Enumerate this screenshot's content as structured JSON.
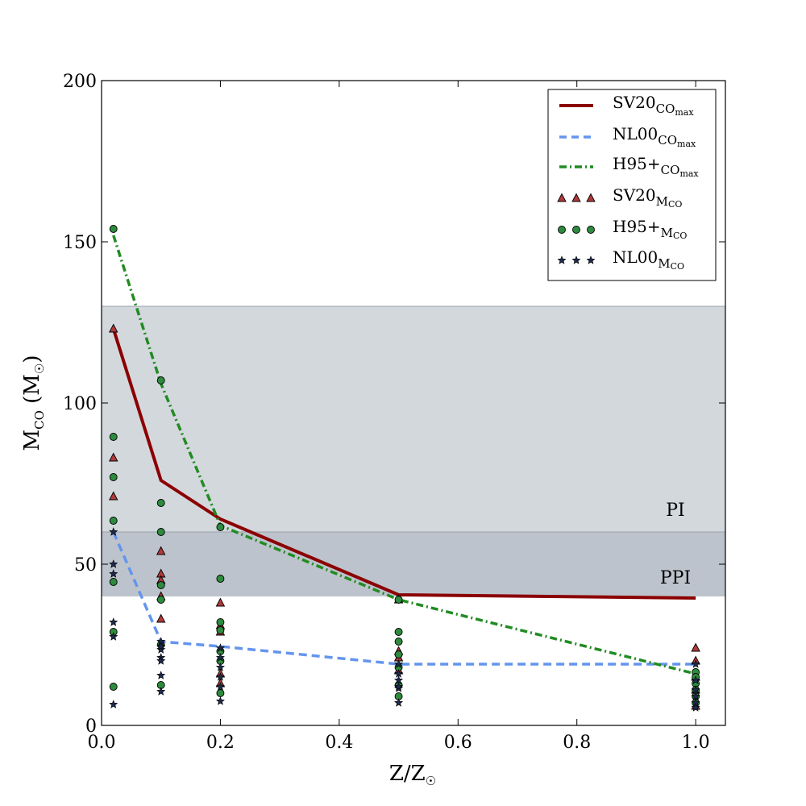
{
  "chart_data": {
    "type": "line",
    "title": "",
    "xlabel": "Z/Z☉",
    "xlabel_main": "Z/Z",
    "xlabel_sub": "☉",
    "ylabel_main": "M",
    "ylabel_sub": "CO",
    "ylabel_unit": " (M",
    "ylabel_unit_sub": "☉",
    "ylabel_close": ")",
    "xlim": [
      0.0,
      1.05
    ],
    "ylim": [
      0,
      200
    ],
    "xticks": [
      "0.0",
      "0.2",
      "0.4",
      "0.6",
      "0.8",
      "1.0"
    ],
    "yticks": [
      "0",
      "50",
      "100",
      "150",
      "200"
    ],
    "grid": false,
    "legend_position": "top-right",
    "bands": [
      {
        "label": "PI",
        "y0": 40,
        "y1": 130,
        "color": "#d3d8dd"
      },
      {
        "label": "PPI",
        "y0": 40,
        "y1": 60,
        "color": "#bdc3cc"
      }
    ],
    "lines": [
      {
        "name_main": "SV20",
        "name_sub": "CO",
        "name_sub2": "max",
        "color": "#8b0000",
        "style": "solid",
        "x": [
          0.02,
          0.1,
          0.2,
          0.5,
          1.0
        ],
        "y": [
          123,
          76,
          64,
          40.5,
          39.5
        ]
      },
      {
        "name_main": "NL00",
        "name_sub": "CO",
        "name_sub2": "max",
        "color": "#6495ed",
        "style": "dashed",
        "x": [
          0.02,
          0.1,
          0.2,
          0.5,
          1.0
        ],
        "y": [
          60,
          26,
          24.5,
          19,
          19
        ]
      },
      {
        "name_main": "H95+",
        "name_sub": "CO",
        "name_sub2": "max",
        "color": "#228b22",
        "style": "dashdot",
        "x": [
          0.02,
          0.1,
          0.2,
          0.5,
          1.0
        ],
        "y": [
          152,
          106,
          62,
          39,
          16
        ]
      }
    ],
    "scatter": [
      {
        "name_main": "SV20",
        "name_sub": "M",
        "name_sub2": "CO",
        "marker": "triangle",
        "color": "#b03a3a",
        "x": [
          0.02,
          0.02,
          0.02,
          0.1,
          0.1,
          0.1,
          0.1,
          0.1,
          0.2,
          0.2,
          0.2,
          0.2,
          0.2,
          0.5,
          0.5,
          0.5,
          0.5,
          1.0,
          1.0,
          1.0,
          1.0,
          1.0
        ],
        "y": [
          123,
          83,
          71,
          54,
          47,
          40,
          33,
          45,
          38,
          16,
          13,
          31,
          29,
          23,
          21,
          17,
          39,
          24,
          20,
          6,
          11,
          15
        ]
      },
      {
        "name_main": "H95+",
        "name_sub": "M",
        "name_sub2": "CO",
        "marker": "circle",
        "color": "#2e8b3e",
        "x": [
          0.02,
          0.02,
          0.02,
          0.02,
          0.02,
          0.02,
          0.02,
          0.1,
          0.1,
          0.1,
          0.1,
          0.1,
          0.1,
          0.1,
          0.2,
          0.2,
          0.2,
          0.2,
          0.2,
          0.2,
          0.2,
          0.5,
          0.5,
          0.5,
          0.5,
          0.5,
          0.5,
          0.5,
          1.0,
          1.0,
          1.0,
          1.0,
          1.0,
          1.0
        ],
        "y": [
          154,
          89.5,
          77,
          63.5,
          44.5,
          29,
          12,
          107,
          69,
          60,
          43.5,
          39,
          25,
          12.5,
          61.5,
          45.5,
          32,
          29.5,
          23,
          20,
          10,
          39,
          26,
          22,
          18,
          12.5,
          9,
          29,
          16.5,
          15,
          13,
          9,
          7,
          11
        ]
      },
      {
        "name_main": "NL00",
        "name_sub": "M",
        "name_sub2": "CO",
        "marker": "star",
        "color": "#1e2a4a",
        "x": [
          0.02,
          0.02,
          0.02,
          0.02,
          0.02,
          0.02,
          0.1,
          0.1,
          0.1,
          0.1,
          0.1,
          0.1,
          0.1,
          0.2,
          0.2,
          0.2,
          0.2,
          0.2,
          0.2,
          0.5,
          0.5,
          0.5,
          0.5,
          0.5,
          0.5,
          1.0,
          1.0,
          1.0,
          1.0,
          1.0,
          1.0
        ],
        "y": [
          60,
          50,
          47,
          32,
          27.5,
          6.5,
          26,
          23.5,
          21,
          20,
          15.5,
          10.5,
          24.5,
          21,
          18,
          15,
          12,
          7.5,
          24,
          19,
          16,
          14,
          11.5,
          7,
          12,
          19,
          14,
          11,
          9,
          7,
          5.5
        ]
      }
    ]
  }
}
